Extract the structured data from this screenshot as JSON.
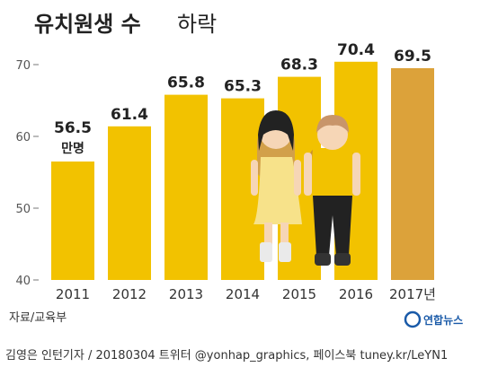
{
  "title": {
    "main": "유치원생 수",
    "sub": "하락"
  },
  "chart_data": {
    "type": "bar",
    "categories": [
      "2011",
      "2012",
      "2013",
      "2014",
      "2015",
      "2016",
      "2017년"
    ],
    "values": [
      56.5,
      61.4,
      65.8,
      65.3,
      68.3,
      70.4,
      69.5
    ],
    "value_labels": [
      "56.5",
      "61.4",
      "65.8",
      "65.3",
      "68.3",
      "70.4",
      "69.5"
    ],
    "unit_label": "만명",
    "ylim": [
      40,
      72
    ],
    "yticks": [
      40,
      50,
      60,
      70
    ],
    "ytick_labels": [
      "40",
      "50",
      "60",
      "70"
    ],
    "grid": false,
    "colors": {
      "bar": "#f2c200",
      "highlight_bar": "#dca23a"
    },
    "highlight_index": 6
  },
  "source": "자료/교육부",
  "brand": "연합뉴스",
  "credit": "김영은 인턴기자 / 20180304   트위터 @yonhap_graphics, 페이스북 tuney.kr/LeYN1"
}
